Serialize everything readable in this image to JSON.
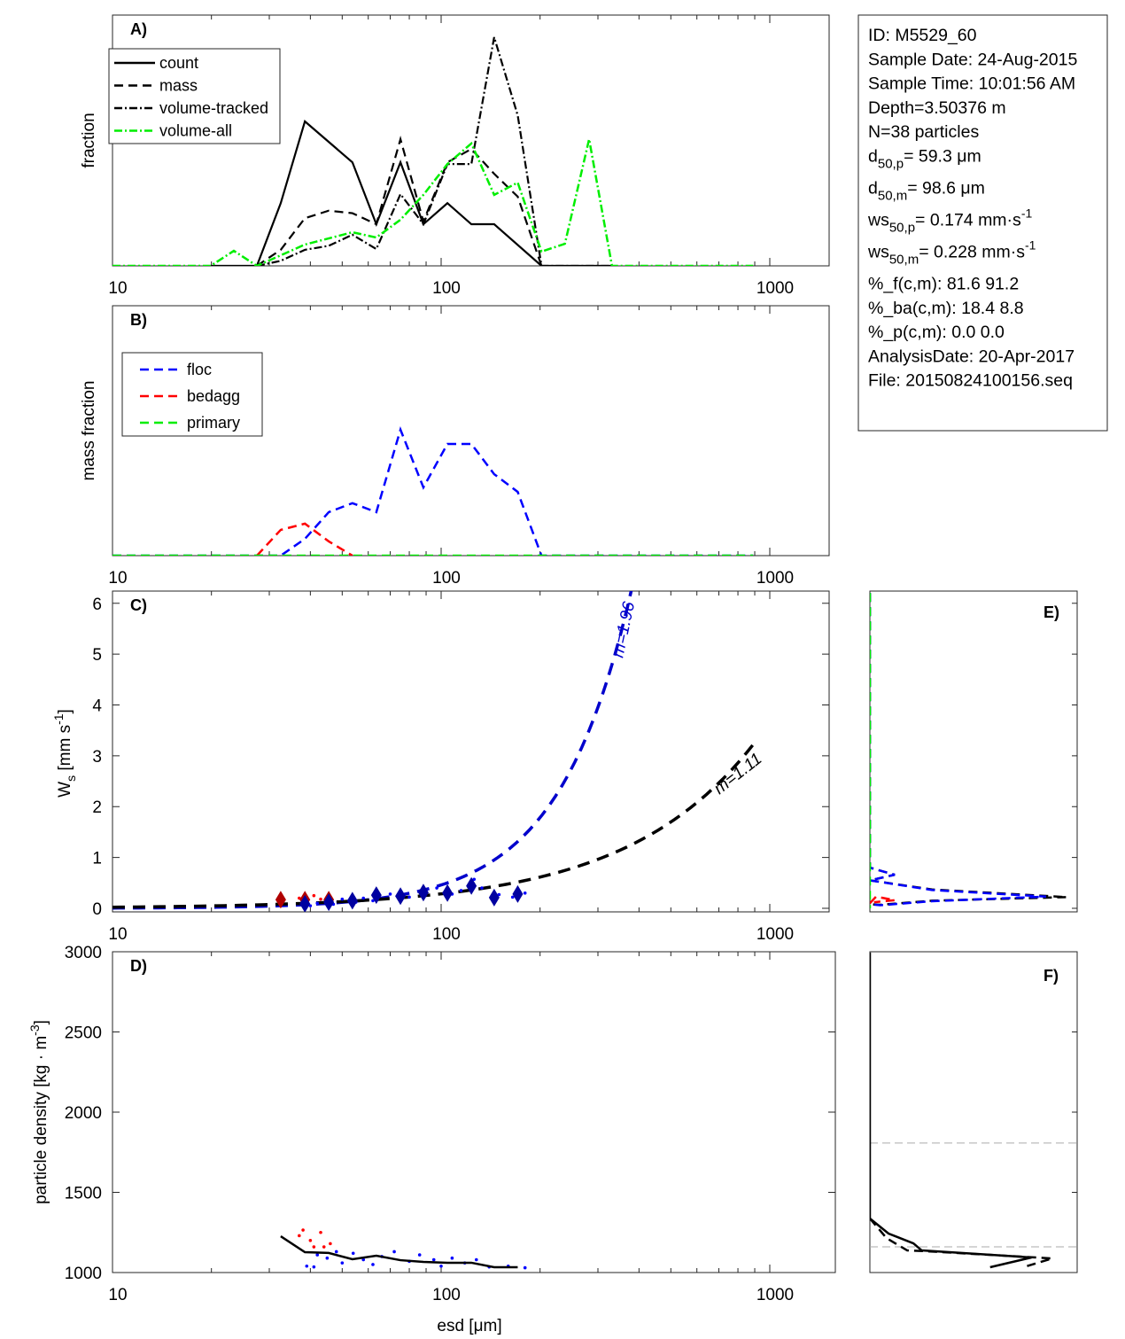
{
  "info_box": {
    "lines": [
      {
        "main": "ID: M5529_60"
      },
      {
        "main": "Sample Date: 24-Aug-2015"
      },
      {
        "main": "Sample Time: 10:01:56 AM"
      },
      {
        "main": "Depth=3.50376 m"
      },
      {
        "main": "N=38 particles"
      },
      {
        "main": "d",
        "sub": "50,p",
        "rest": "=  59.3 μm"
      },
      {
        "main": "d",
        "sub": "50,m",
        "rest": "=  98.6 μm"
      },
      {
        "main": "ws",
        "sub": "50,p",
        "rest": "= 0.174 mm·s",
        "sup": "-1"
      },
      {
        "main": "ws",
        "sub": "50,m",
        "rest": "= 0.228 mm·s",
        "sup": "-1"
      },
      {
        "main": "%_f(c,m): 81.6 91.2"
      },
      {
        "main": "%_ba(c,m): 18.4 8.8"
      },
      {
        "main": "%_p(c,m): 0.0 0.0"
      },
      {
        "main": "AnalysisDate: 20-Apr-2017"
      },
      {
        "main": "File: 20150824100156.seq"
      }
    ]
  },
  "chart_data": [
    {
      "id": "A",
      "panel_label": "A)",
      "type": "line",
      "xscale": "log",
      "xlim": [
        10,
        1500
      ],
      "ylim": [
        0,
        1
      ],
      "xticks": [
        "10",
        "100",
        "1000"
      ],
      "ylabel": "fraction",
      "legend_position": "top-left",
      "series": [
        {
          "name": "count",
          "color": "#000000",
          "style": "solid",
          "points": [
            [
              19.9,
              0
            ],
            [
              27.5,
              0
            ],
            [
              32.5,
              0.25
            ],
            [
              38.5,
              0.576
            ],
            [
              53.7,
              0.413
            ],
            [
              63.5,
              0.166
            ],
            [
              75.2,
              0.413
            ],
            [
              88.3,
              0.166
            ],
            [
              104.5,
              0.25
            ],
            [
              123.6,
              0.166
            ],
            [
              145,
              0.166
            ],
            [
              202,
              0
            ],
            [
              331,
              0
            ]
          ]
        },
        {
          "name": "mass",
          "color": "#000000",
          "style": "dashed",
          "points": [
            [
              27.5,
              0
            ],
            [
              32.5,
              0.064
            ],
            [
              38.5,
              0.19
            ],
            [
              45.5,
              0.22
            ],
            [
              53.7,
              0.21
            ],
            [
              63.5,
              0.166
            ],
            [
              75.2,
              0.505
            ],
            [
              88.3,
              0.177
            ],
            [
              104.5,
              0.413
            ],
            [
              123.6,
              0.466
            ],
            [
              145,
              0.367
            ],
            [
              171,
              0.276
            ],
            [
              202,
              0
            ]
          ]
        },
        {
          "name": "volume-tracked",
          "color": "#000000",
          "style": "dashdot",
          "points": [
            [
              27.5,
              0
            ],
            [
              32.5,
              0.02
            ],
            [
              38.5,
              0.064
            ],
            [
              45.5,
              0.08
            ],
            [
              53.7,
              0.124
            ],
            [
              63.5,
              0.067
            ],
            [
              75.2,
              0.286
            ],
            [
              88.3,
              0.166
            ],
            [
              104.5,
              0.406
            ],
            [
              123.6,
              0.406
            ],
            [
              145,
              0.912
            ],
            [
              171,
              0.6
            ],
            [
              202,
              0
            ],
            [
              331,
              0
            ]
          ]
        },
        {
          "name": "volume-all",
          "color": "#00ee00",
          "style": "dashdot",
          "points": [
            [
              10,
              0
            ],
            [
              19.9,
              0
            ],
            [
              23.4,
              0.06
            ],
            [
              27.5,
              0
            ],
            [
              32.5,
              0.042
            ],
            [
              38.5,
              0.085
            ],
            [
              53.7,
              0.134
            ],
            [
              63.5,
              0.113
            ],
            [
              75.2,
              0.184
            ],
            [
              88.3,
              0.283
            ],
            [
              104.5,
              0.406
            ],
            [
              123.6,
              0.488
            ],
            [
              145,
              0.283
            ],
            [
              171,
              0.332
            ],
            [
              202,
              0.057
            ],
            [
              238,
              0.088
            ],
            [
              282,
              0.505
            ],
            [
              331,
              0
            ],
            [
              890,
              0
            ]
          ]
        }
      ]
    },
    {
      "id": "B",
      "panel_label": "B)",
      "type": "line",
      "xscale": "log",
      "xlim": [
        10,
        1500
      ],
      "ylim": [
        0,
        1
      ],
      "xticks": [
        "10",
        "100",
        "1000"
      ],
      "ylabel": "mass fraction",
      "legend_position": "top-left",
      "series": [
        {
          "name": "floc",
          "color": "#0000ff",
          "style": "dashed",
          "points": [
            [
              10,
              0
            ],
            [
              32.5,
              0
            ],
            [
              38.5,
              0.067
            ],
            [
              45.5,
              0.174
            ],
            [
              53.7,
              0.21
            ],
            [
              63.5,
              0.174
            ],
            [
              75.2,
              0.504
            ],
            [
              88.3,
              0.273
            ],
            [
              104.5,
              0.447
            ],
            [
              123.6,
              0.447
            ],
            [
              145,
              0.326
            ],
            [
              171,
              0.255
            ],
            [
              202,
              0
            ],
            [
              890,
              0
            ]
          ]
        },
        {
          "name": "bedagg",
          "color": "#ff0000",
          "style": "dashed",
          "points": [
            [
              27.5,
              0
            ],
            [
              32.5,
              0.103
            ],
            [
              38.5,
              0.128
            ],
            [
              45.5,
              0.057
            ],
            [
              53.7,
              0
            ]
          ]
        },
        {
          "name": "primary",
          "color": "#00ee00",
          "style": "dashed",
          "points": [
            [
              10,
              0
            ],
            [
              890,
              0
            ]
          ]
        }
      ]
    },
    {
      "id": "C",
      "panel_label": "C)",
      "type": "scatter",
      "xscale": "log",
      "xlim": [
        10,
        1500
      ],
      "ylim": [
        -0.07,
        6.24
      ],
      "xticks": [
        "10",
        "100",
        "1000"
      ],
      "yticks": [
        "0",
        "1",
        "2",
        "3",
        "4",
        "5",
        "6"
      ],
      "ylabel": "W",
      "ylabel_sub": "s",
      "ylabel_rest": " [mm s",
      "ylabel_sup": "-1",
      "ylabel_end": "]",
      "fits": [
        {
          "name": "floc fit",
          "label": "m=1.96",
          "exponent": 1.96,
          "ref_d": 104.5,
          "ref_ws": 0.5,
          "range": [
            10,
            385
          ],
          "color": "#0000cc"
        },
        {
          "name": "all fit",
          "label": "m=1.11",
          "exponent": 1.11,
          "ref_d": 900,
          "ref_ws": 3.26,
          "range": [
            10,
            900
          ],
          "color": "#000000"
        }
      ],
      "diamonds": [
        {
          "group": "bedagg",
          "color": "#b00000",
          "points": [
            [
              32.5,
              0.17
            ],
            [
              38.5,
              0.17
            ],
            [
              45.5,
              0.17
            ]
          ]
        },
        {
          "group": "floc",
          "color": "#0000a0",
          "points": [
            [
              38.5,
              0.09
            ],
            [
              45.5,
              0.12
            ],
            [
              53.7,
              0.15
            ],
            [
              63.5,
              0.26
            ],
            [
              75.2,
              0.24
            ],
            [
              88.3,
              0.31
            ],
            [
              104.5,
              0.3
            ],
            [
              123.6,
              0.44
            ],
            [
              145,
              0.21
            ],
            [
              171,
              0.28
            ]
          ]
        }
      ],
      "dots": [
        {
          "group": "bedagg",
          "color": "#ff0000",
          "points": [
            [
              37,
              0.2
            ],
            [
              41,
              0.25
            ],
            [
              43,
              0.18
            ]
          ]
        },
        {
          "group": "floc",
          "color": "#0000ff",
          "points": [
            [
              40,
              0.05
            ],
            [
              42,
              0.1
            ],
            [
              47,
              0.08
            ],
            [
              50,
              0.18
            ],
            [
              55,
              0.12
            ],
            [
              58,
              0.2
            ],
            [
              62,
              0.15
            ],
            [
              70,
              0.28
            ],
            [
              80,
              0.22
            ],
            [
              90,
              0.34
            ],
            [
              97,
              0.4
            ],
            [
              108,
              0.28
            ],
            [
              115,
              0.35
            ],
            [
              126,
              0.57
            ],
            [
              133,
              0.4
            ],
            [
              150,
              0.27
            ],
            [
              165,
              0.22
            ],
            [
              180,
              0.3
            ]
          ]
        }
      ]
    },
    {
      "id": "D",
      "panel_label": "D)",
      "type": "scatter",
      "xscale": "log",
      "xlim": [
        10,
        1500
      ],
      "ylim": [
        1000,
        3000
      ],
      "xticks": [
        "10",
        "100",
        "1000"
      ],
      "yticks": [
        "1000",
        "1500",
        "2000",
        "2500",
        "3000"
      ],
      "xlabel": "esd [μm]",
      "ylabel": "particle density [kg · m",
      "ylabel_sup": "-3",
      "ylabel_end": "]",
      "line": [
        [
          32.5,
          1226
        ],
        [
          38.5,
          1127
        ],
        [
          45.5,
          1122
        ],
        [
          53.7,
          1083
        ],
        [
          63.5,
          1105
        ],
        [
          75.2,
          1077
        ],
        [
          88.3,
          1066
        ],
        [
          104.5,
          1061
        ],
        [
          123.6,
          1061
        ],
        [
          145,
          1033
        ],
        [
          171,
          1033
        ]
      ],
      "dots": [
        {
          "group": "bedagg",
          "color": "#ff0000",
          "points": [
            [
              37,
              1230
            ],
            [
              38,
              1265
            ],
            [
              40,
              1200
            ],
            [
              41,
              1160
            ],
            [
              43,
              1250
            ],
            [
              44,
              1160
            ],
            [
              46,
              1180
            ]
          ]
        },
        {
          "group": "floc",
          "color": "#0000ff",
          "points": [
            [
              39,
              1040
            ],
            [
              41,
              1035
            ],
            [
              42,
              1110
            ],
            [
              45,
              1090
            ],
            [
              48,
              1130
            ],
            [
              50,
              1060
            ],
            [
              54,
              1120
            ],
            [
              58,
              1080
            ],
            [
              62,
              1050
            ],
            [
              66,
              1100
            ],
            [
              72,
              1130
            ],
            [
              80,
              1070
            ],
            [
              86,
              1110
            ],
            [
              95,
              1080
            ],
            [
              100,
              1040
            ],
            [
              108,
              1090
            ],
            [
              118,
              1060
            ],
            [
              128,
              1080
            ],
            [
              140,
              1035
            ],
            [
              160,
              1040
            ],
            [
              180,
              1030
            ]
          ]
        }
      ]
    },
    {
      "id": "E",
      "panel_label": "E)",
      "type": "line",
      "xlim": [
        0,
        1
      ],
      "ylim": [
        -0.07,
        6.24
      ],
      "series": [
        {
          "name": "all",
          "color": "#000000",
          "style": "dashed",
          "points": [
            [
              0,
              6.2
            ],
            [
              0,
              0.8
            ],
            [
              0.12,
              0.66
            ],
            [
              0,
              0.55
            ],
            [
              0.3,
              0.37
            ],
            [
              0.95,
              0.22
            ],
            [
              0.3,
              0.15
            ],
            [
              0.05,
              0.07
            ],
            [
              0,
              0.08
            ]
          ]
        },
        {
          "name": "floc",
          "color": "#0000ff",
          "style": "dashed",
          "points": [
            [
              0,
              6.2
            ],
            [
              0,
              0.8
            ],
            [
              0.12,
              0.66
            ],
            [
              0,
              0.55
            ],
            [
              0.3,
              0.36
            ],
            [
              0.85,
              0.23
            ],
            [
              0.3,
              0.14
            ],
            [
              0.05,
              0.06
            ],
            [
              0,
              0.08
            ]
          ]
        },
        {
          "name": "bedagg",
          "color": "#ff0000",
          "style": "dashed",
          "points": [
            [
              0,
              0.1
            ],
            [
              0.03,
              0.23
            ],
            [
              0.12,
              0.16
            ],
            [
              0.02,
              0.12
            ]
          ]
        },
        {
          "name": "primary",
          "color": "#00ee00",
          "style": "dashed",
          "points": [
            [
              0,
              6.2
            ],
            [
              0,
              0
            ]
          ]
        }
      ]
    },
    {
      "id": "F",
      "panel_label": "F)",
      "type": "line",
      "xlim": [
        0,
        1
      ],
      "ylim": [
        1000,
        3000
      ],
      "reference_lines": [
        1807,
        1160
      ],
      "series": [
        {
          "name": "count",
          "color": "#000000",
          "style": "solid",
          "points": [
            [
              0,
              2995
            ],
            [
              0,
              1337
            ],
            [
              0.09,
              1243
            ],
            [
              0.21,
              1182
            ],
            [
              0.25,
              1138
            ],
            [
              0.78,
              1094
            ],
            [
              0.58,
              1033
            ]
          ]
        },
        {
          "name": "mass",
          "color": "#000000",
          "style": "dashed",
          "points": [
            [
              0,
              1337
            ],
            [
              0.08,
              1215
            ],
            [
              0.18,
              1138
            ],
            [
              0.27,
              1133
            ],
            [
              0.88,
              1088
            ],
            [
              0.74,
              1033
            ]
          ]
        }
      ]
    }
  ]
}
